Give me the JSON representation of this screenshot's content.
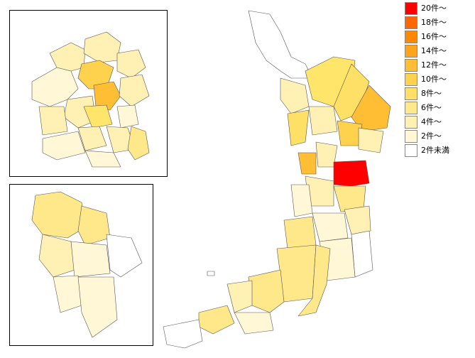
{
  "legend": {
    "items": [
      {
        "label": "20件～",
        "color": "#ff0000"
      },
      {
        "label": "18件～",
        "color": "#ff6600"
      },
      {
        "label": "16件～",
        "color": "#ff8800"
      },
      {
        "label": "14件～",
        "color": "#ffa41a"
      },
      {
        "label": "12件～",
        "color": "#ffbe33"
      },
      {
        "label": "10件～",
        "color": "#ffd24d"
      },
      {
        "label": "8件～",
        "color": "#ffe066"
      },
      {
        "label": "6件～",
        "color": "#ffe88a"
      },
      {
        "label": "4件～",
        "color": "#fff0b3"
      },
      {
        "label": "2件～",
        "color": "#fff7d6"
      },
      {
        "label": "2件未満",
        "color": "#ffffff"
      }
    ]
  },
  "map": {
    "main_region": "osaka-prefecture",
    "insets": [
      "osaka-city-wards",
      "sakai-city-wards"
    ],
    "highlight_color": "#ff0000"
  }
}
